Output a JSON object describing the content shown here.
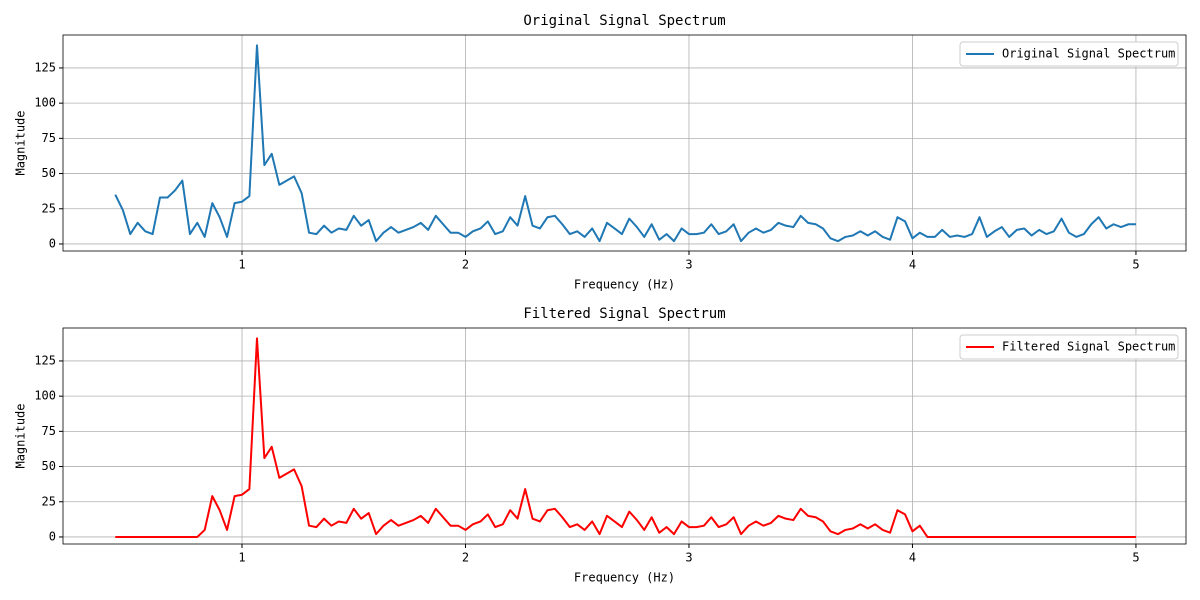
{
  "chart_data": [
    {
      "type": "line",
      "title": "Original Signal Spectrum",
      "xlabel": "Frequency (Hz)",
      "ylabel": "Magnitude",
      "x": [
        0.433,
        0.467,
        0.5,
        0.533,
        0.567,
        0.6,
        0.633,
        0.667,
        0.7,
        0.733,
        0.767,
        0.8,
        0.833,
        0.867,
        0.9,
        0.933,
        0.967,
        1.0,
        1.033,
        1.067,
        1.1,
        1.133,
        1.167,
        1.2,
        1.233,
        1.267,
        1.3,
        1.333,
        1.367,
        1.4,
        1.433,
        1.467,
        1.5,
        1.533,
        1.567,
        1.6,
        1.633,
        1.667,
        1.7,
        1.733,
        1.767,
        1.8,
        1.833,
        1.867,
        1.9,
        1.933,
        1.967,
        2.0,
        2.033,
        2.067,
        2.1,
        2.133,
        2.167,
        2.2,
        2.233,
        2.267,
        2.3,
        2.333,
        2.367,
        2.4,
        2.433,
        2.467,
        2.5,
        2.533,
        2.567,
        2.6,
        2.633,
        2.667,
        2.7,
        2.733,
        2.767,
        2.8,
        2.833,
        2.867,
        2.9,
        2.933,
        2.967,
        3.0,
        3.033,
        3.067,
        3.1,
        3.133,
        3.167,
        3.2,
        3.233,
        3.267,
        3.3,
        3.333,
        3.367,
        3.4,
        3.433,
        3.467,
        3.5,
        3.533,
        3.567,
        3.6,
        3.633,
        3.667,
        3.7,
        3.733,
        3.767,
        3.8,
        3.833,
        3.867,
        3.9,
        3.933,
        3.967,
        4.0,
        4.033,
        4.067,
        4.1,
        4.133,
        4.167,
        4.2,
        4.233,
        4.267,
        4.3,
        4.333,
        4.367,
        4.4,
        4.433,
        4.467,
        4.5,
        4.533,
        4.567,
        4.6,
        4.633,
        4.667,
        4.7,
        4.733,
        4.767,
        4.8,
        4.833,
        4.867,
        4.9,
        4.933,
        4.967,
        5.0
      ],
      "series": [
        {
          "name": "Original Signal Spectrum",
          "color": "#1f77b4",
          "values": [
            35,
            24,
            7,
            15,
            9,
            7,
            33,
            33,
            38,
            45,
            7,
            15,
            5,
            29,
            19,
            5,
            29,
            30,
            34,
            141,
            56,
            64,
            42,
            45,
            48,
            36,
            8,
            7,
            13,
            8,
            11,
            10,
            20,
            13,
            17,
            2,
            8,
            12,
            8,
            10,
            12,
            15,
            10,
            20,
            14,
            8,
            8,
            5,
            9,
            11,
            16,
            7,
            9,
            19,
            13,
            34,
            13,
            11,
            19,
            20,
            14,
            7,
            9,
            5,
            11,
            2,
            15,
            11,
            7,
            18,
            12,
            5,
            14,
            3,
            7,
            2,
            11,
            7,
            7,
            8,
            14,
            7,
            9,
            14,
            2,
            8,
            11,
            8,
            10,
            15,
            13,
            12,
            20,
            15,
            14,
            11,
            4,
            2,
            5,
            6,
            9,
            6,
            9,
            5,
            3,
            19,
            16,
            4,
            8,
            5,
            5,
            10,
            5,
            6,
            5,
            7,
            19,
            5,
            9,
            12,
            5,
            10,
            11,
            6,
            10,
            7,
            9,
            18,
            8,
            5,
            7,
            14,
            19,
            11,
            14,
            12,
            14,
            14
          ]
        }
      ],
      "xlim": [
        0.199,
        5.224
      ],
      "ylim": [
        -5,
        148.4
      ],
      "xticks": [
        1,
        2,
        3,
        4,
        5
      ],
      "yticks": [
        0,
        25,
        50,
        75,
        100,
        125
      ],
      "grid": true,
      "legend": "upper right"
    },
    {
      "type": "line",
      "title": "Filtered Signal Spectrum",
      "xlabel": "Frequency (Hz)",
      "ylabel": "Magnitude",
      "x": [
        0.433,
        0.467,
        0.5,
        0.533,
        0.567,
        0.6,
        0.633,
        0.667,
        0.7,
        0.733,
        0.767,
        0.8,
        0.833,
        0.867,
        0.9,
        0.933,
        0.967,
        1.0,
        1.033,
        1.067,
        1.1,
        1.133,
        1.167,
        1.2,
        1.233,
        1.267,
        1.3,
        1.333,
        1.367,
        1.4,
        1.433,
        1.467,
        1.5,
        1.533,
        1.567,
        1.6,
        1.633,
        1.667,
        1.7,
        1.733,
        1.767,
        1.8,
        1.833,
        1.867,
        1.9,
        1.933,
        1.967,
        2.0,
        2.033,
        2.067,
        2.1,
        2.133,
        2.167,
        2.2,
        2.233,
        2.267,
        2.3,
        2.333,
        2.367,
        2.4,
        2.433,
        2.467,
        2.5,
        2.533,
        2.567,
        2.6,
        2.633,
        2.667,
        2.7,
        2.733,
        2.767,
        2.8,
        2.833,
        2.867,
        2.9,
        2.933,
        2.967,
        3.0,
        3.033,
        3.067,
        3.1,
        3.133,
        3.167,
        3.2,
        3.233,
        3.267,
        3.3,
        3.333,
        3.367,
        3.4,
        3.433,
        3.467,
        3.5,
        3.533,
        3.567,
        3.6,
        3.633,
        3.667,
        3.7,
        3.733,
        3.767,
        3.8,
        3.833,
        3.867,
        3.9,
        3.933,
        3.967,
        4.0,
        4.033,
        4.067,
        4.1,
        4.133,
        4.167,
        4.2,
        4.233,
        4.267,
        4.3,
        4.333,
        4.367,
        4.4,
        4.433,
        4.467,
        4.5,
        4.533,
        4.567,
        4.6,
        4.633,
        4.667,
        4.7,
        4.733,
        4.767,
        4.8,
        4.833,
        4.867,
        4.9,
        4.933,
        4.967,
        5.0
      ],
      "series": [
        {
          "name": "Filtered Signal Spectrum",
          "color": "#ff0000",
          "values": [
            0,
            0,
            0,
            0,
            0,
            0,
            0,
            0,
            0,
            0,
            0,
            0,
            5,
            29,
            19,
            5,
            29,
            30,
            34,
            141,
            56,
            64,
            42,
            45,
            48,
            36,
            8,
            7,
            13,
            8,
            11,
            10,
            20,
            13,
            17,
            2,
            8,
            12,
            8,
            10,
            12,
            15,
            10,
            20,
            14,
            8,
            8,
            5,
            9,
            11,
            16,
            7,
            9,
            19,
            13,
            34,
            13,
            11,
            19,
            20,
            14,
            7,
            9,
            5,
            11,
            2,
            15,
            11,
            7,
            18,
            12,
            5,
            14,
            3,
            7,
            2,
            11,
            7,
            7,
            8,
            14,
            7,
            9,
            14,
            2,
            8,
            11,
            8,
            10,
            15,
            13,
            12,
            20,
            15,
            14,
            11,
            4,
            2,
            5,
            6,
            9,
            6,
            9,
            5,
            3,
            19,
            16,
            4,
            8,
            0,
            0,
            0,
            0,
            0,
            0,
            0,
            0,
            0,
            0,
            0,
            0,
            0,
            0,
            0,
            0,
            0,
            0,
            0,
            0,
            0,
            0,
            0,
            0,
            0,
            0,
            0,
            0,
            0
          ]
        }
      ],
      "xlim": [
        0.199,
        5.224
      ],
      "ylim": [
        -5,
        148.4
      ],
      "xticks": [
        1,
        2,
        3,
        4,
        5
      ],
      "yticks": [
        0,
        25,
        50,
        75,
        100,
        125
      ],
      "grid": true,
      "legend": "upper right"
    }
  ]
}
